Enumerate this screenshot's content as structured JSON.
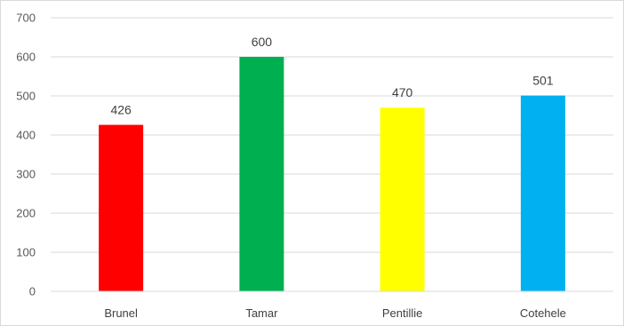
{
  "chart_data": {
    "type": "bar",
    "categories": [
      "Brunel",
      "Tamar",
      "Pentillie",
      "Cotehele"
    ],
    "values": [
      426,
      600,
      470,
      501
    ],
    "bar_colors": [
      "#ff0000",
      "#00b050",
      "#ffff00",
      "#00b0f0"
    ],
    "data_labels": [
      "426",
      "600",
      "470",
      "501"
    ],
    "yticks": [
      "0",
      "100",
      "200",
      "300",
      "400",
      "500",
      "600",
      "700"
    ],
    "ylim": [
      0,
      700
    ],
    "grid": true,
    "legend": "none"
  }
}
